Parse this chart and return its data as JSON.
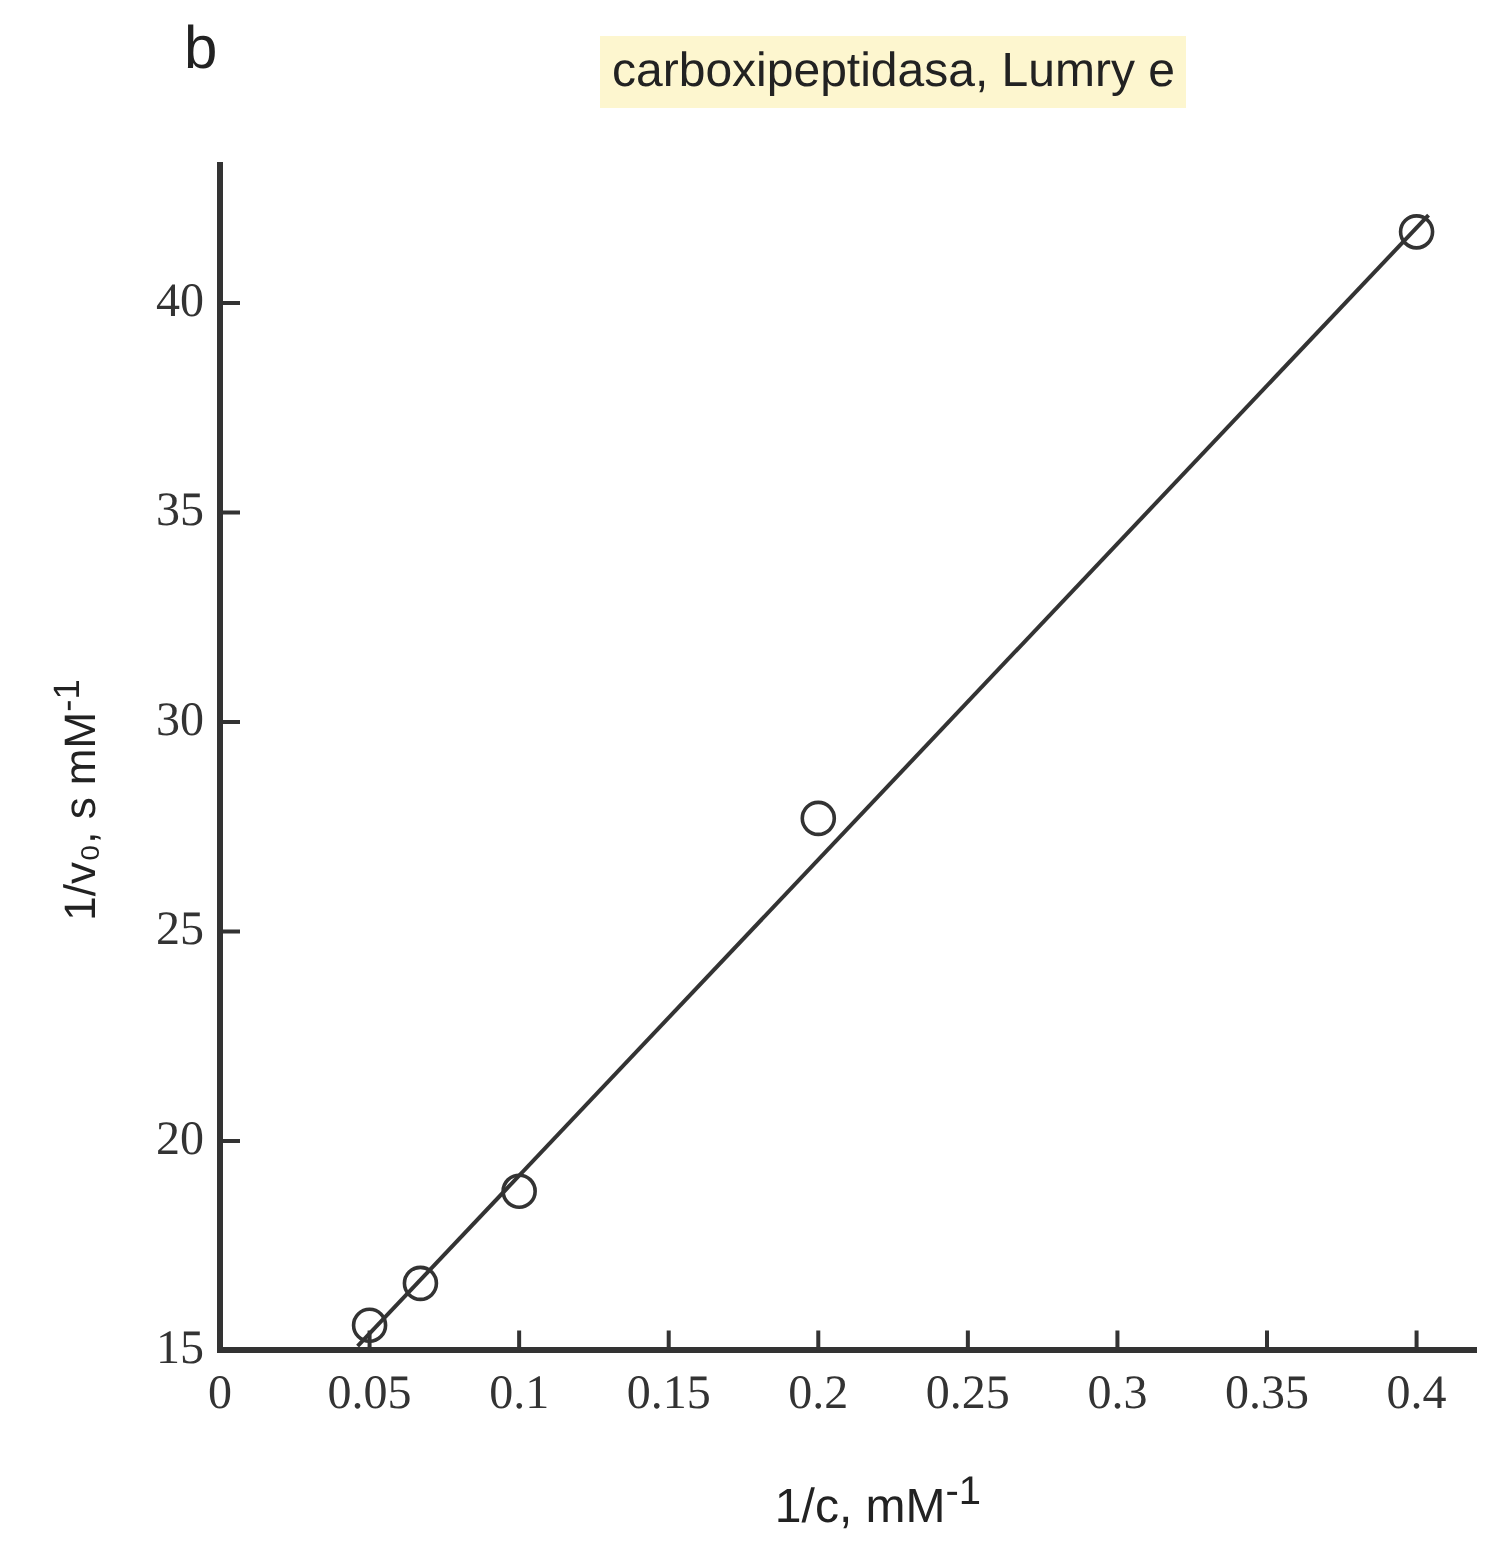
{
  "chart_data": {
    "type": "scatter",
    "xlabel": "1/c, mM$^{-1}$",
    "ylabel": "1/v₀, s mM$^{-1}$",
    "annotations": [
      "b",
      "carboxipeptidasa, Lumry e"
    ],
    "series": [
      {
        "color": "#333333",
        "marker": "circle",
        "x": [
          0.05,
          0.067,
          0.1,
          0.2,
          0.4
        ],
        "values": [
          15.6,
          16.6,
          18.8,
          27.7,
          41.7
        ]
      },
      {
        "type": "line",
        "color": "#333333",
        "line_style": "solid",
        "x": [
          0.046,
          0.404
        ],
        "values": [
          15.1,
          42.1
        ]
      }
    ],
    "grid": false,
    "legend": false,
    "xlim": [
      0,
      0.42
    ],
    "ylim": [
      15,
      43.3
    ],
    "xticks": [
      0,
      0.05,
      0.1,
      0.15,
      0.2,
      0.25,
      0.3,
      0.35,
      0.4
    ],
    "yticks": [
      15,
      20,
      25,
      30,
      35,
      40
    ]
  }
}
